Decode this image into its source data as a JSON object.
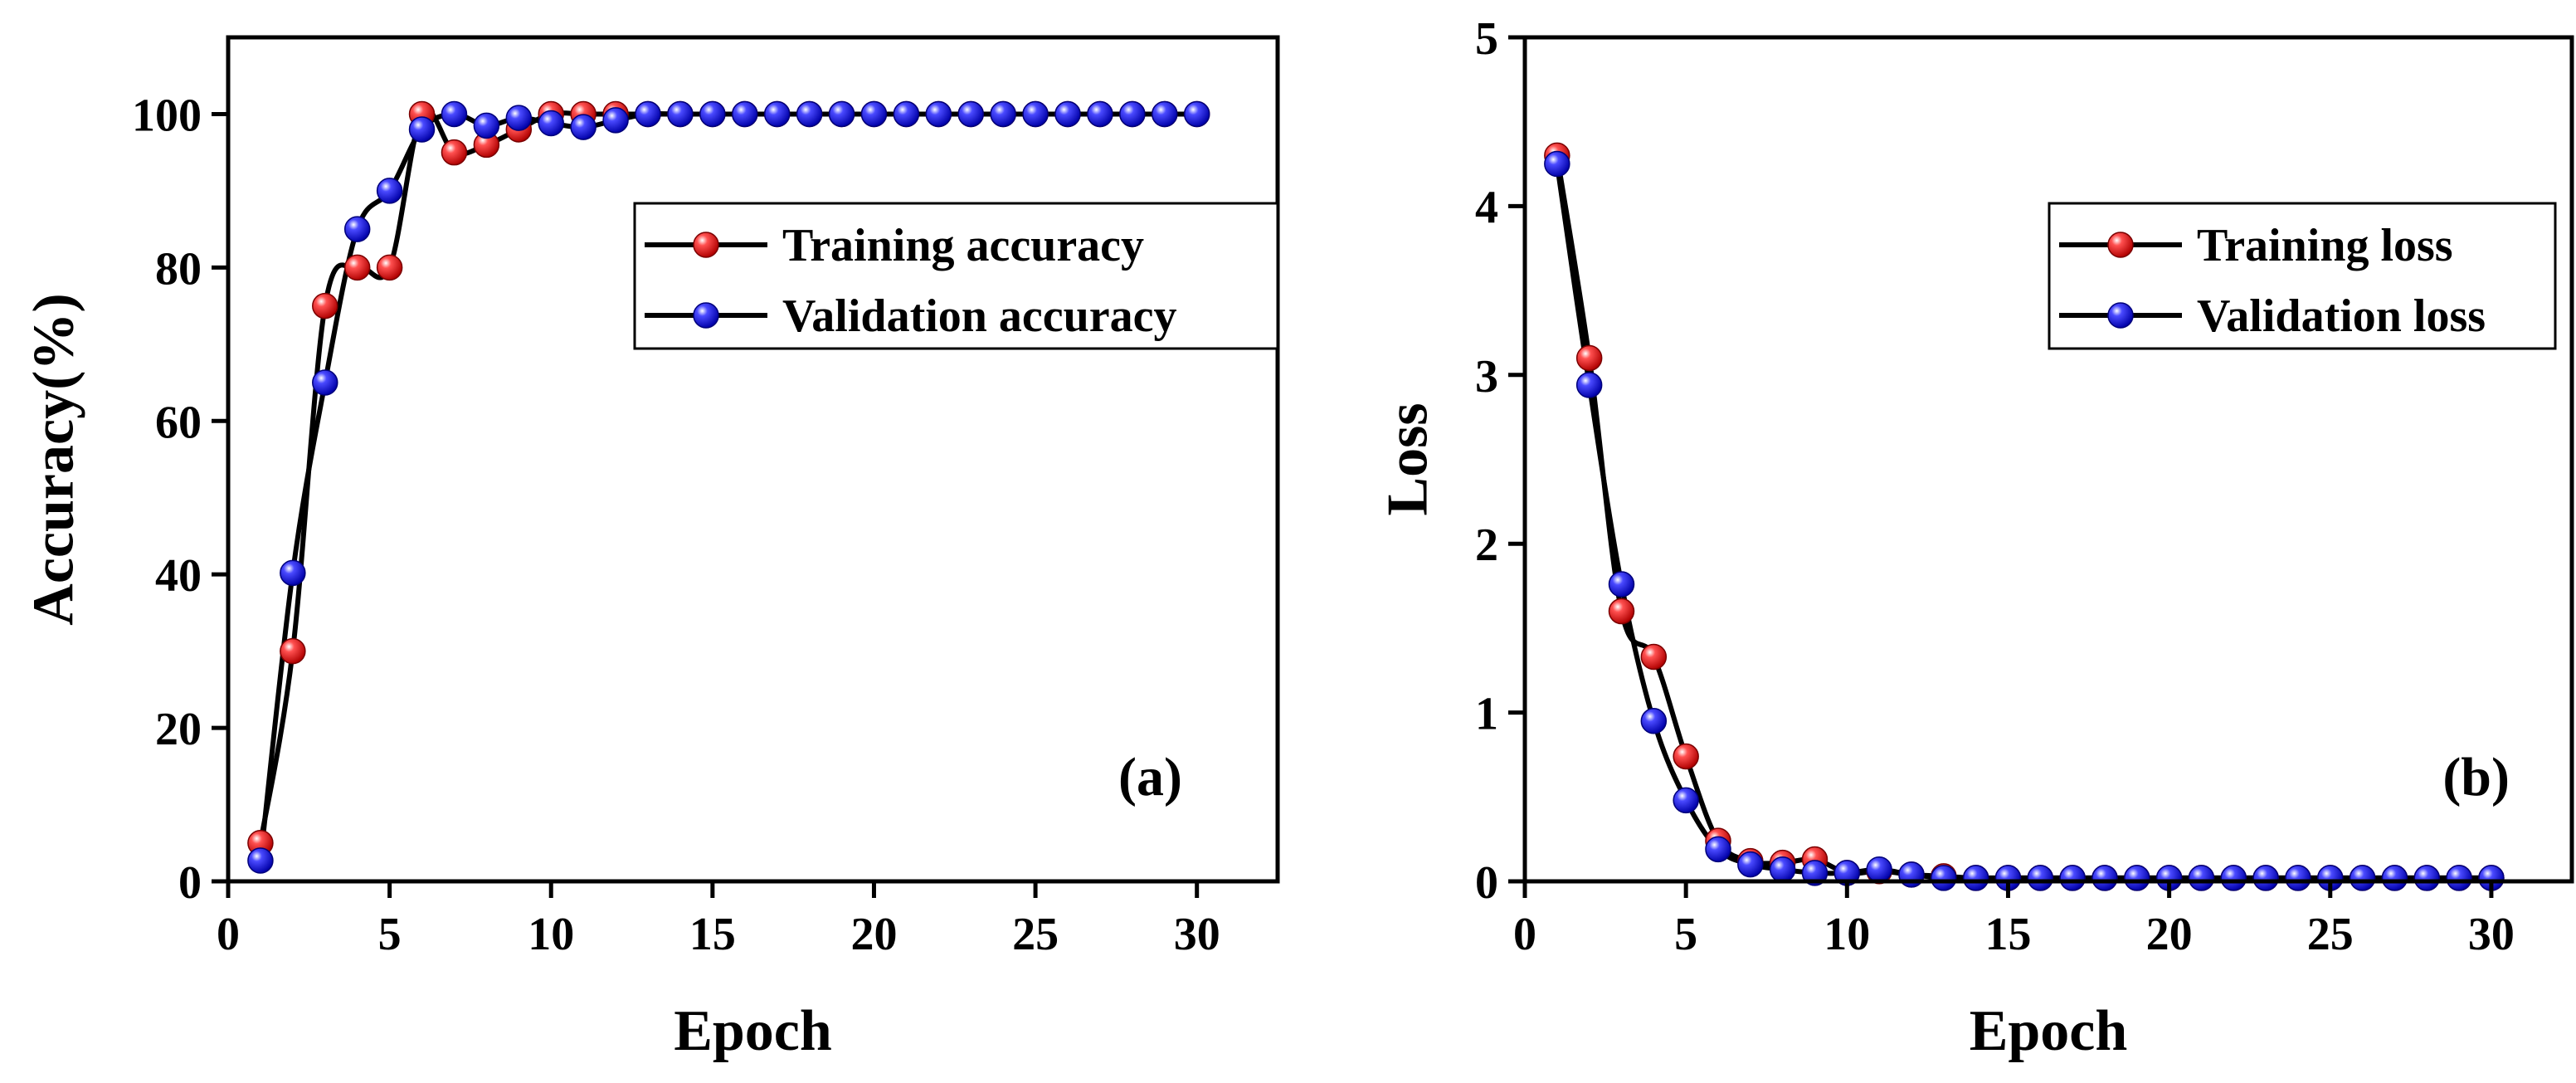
{
  "chart_data": [
    {
      "type": "line",
      "panel_label": "(a)",
      "title": "",
      "xlabel": "Epoch",
      "ylabel": "Accuracy(%)",
      "xlim": [
        0,
        32.5
      ],
      "ylim": [
        0,
        110
      ],
      "xticks": [
        0,
        5,
        10,
        15,
        20,
        25,
        30
      ],
      "yticks": [
        0,
        20,
        40,
        60,
        80,
        100
      ],
      "legend_position": "upper-right",
      "grid": false,
      "x": [
        1,
        2,
        3,
        4,
        5,
        6,
        7,
        8,
        9,
        10,
        11,
        12,
        13,
        14,
        15,
        16,
        17,
        18,
        19,
        20,
        21,
        22,
        23,
        24,
        25,
        26,
        27,
        28,
        29,
        30
      ],
      "series": [
        {
          "name": "Training accuracy",
          "marker_color": "#ff2020",
          "values": [
            5,
            30,
            75,
            80,
            80,
            100,
            95,
            96,
            98,
            100,
            100,
            100,
            100,
            100,
            100,
            100,
            100,
            100,
            100,
            100,
            100,
            100,
            100,
            100,
            100,
            100,
            100,
            100,
            100,
            100
          ]
        },
        {
          "name": "Validation accuracy",
          "marker_color": "#2020ff",
          "values": [
            2.7,
            40.2,
            65,
            85,
            90,
            98,
            100,
            98.5,
            99.5,
            98.8,
            98.3,
            99.2,
            100,
            100,
            100,
            100,
            100,
            100,
            100,
            100,
            100,
            100,
            100,
            100,
            100,
            100,
            100,
            100,
            100,
            100
          ]
        }
      ]
    },
    {
      "type": "line",
      "panel_label": "(b)",
      "title": "",
      "xlabel": "Epoch",
      "ylabel": "Loss",
      "xlim": [
        0,
        32.5
      ],
      "ylim": [
        0,
        5
      ],
      "xticks": [
        0,
        5,
        10,
        15,
        20,
        25,
        30
      ],
      "yticks": [
        0,
        1,
        2,
        3,
        4,
        5
      ],
      "legend_position": "upper-right",
      "grid": false,
      "x": [
        1,
        2,
        3,
        4,
        5,
        6,
        7,
        8,
        9,
        10,
        11,
        12,
        13,
        14,
        15,
        16,
        17,
        18,
        19,
        20,
        21,
        22,
        23,
        24,
        25,
        26,
        27,
        28,
        29,
        30
      ],
      "series": [
        {
          "name": "Training loss",
          "marker_color": "#ff2020",
          "values": [
            4.3,
            3.1,
            1.6,
            1.33,
            0.74,
            0.24,
            0.12,
            0.11,
            0.13,
            0.05,
            0.06,
            0.04,
            0.03,
            0.02,
            0.02,
            0.02,
            0.02,
            0.02,
            0.02,
            0.02,
            0.02,
            0.02,
            0.02,
            0.02,
            0.02,
            0.02,
            0.02,
            0.02,
            0.02,
            0.02
          ]
        },
        {
          "name": "Validation loss",
          "marker_color": "#2020ff",
          "values": [
            4.25,
            2.94,
            1.76,
            0.95,
            0.48,
            0.19,
            0.1,
            0.07,
            0.05,
            0.05,
            0.07,
            0.04,
            0.02,
            0.02,
            0.02,
            0.02,
            0.02,
            0.02,
            0.02,
            0.02,
            0.02,
            0.02,
            0.02,
            0.02,
            0.02,
            0.02,
            0.02,
            0.02,
            0.02,
            0.02
          ]
        }
      ]
    }
  ]
}
